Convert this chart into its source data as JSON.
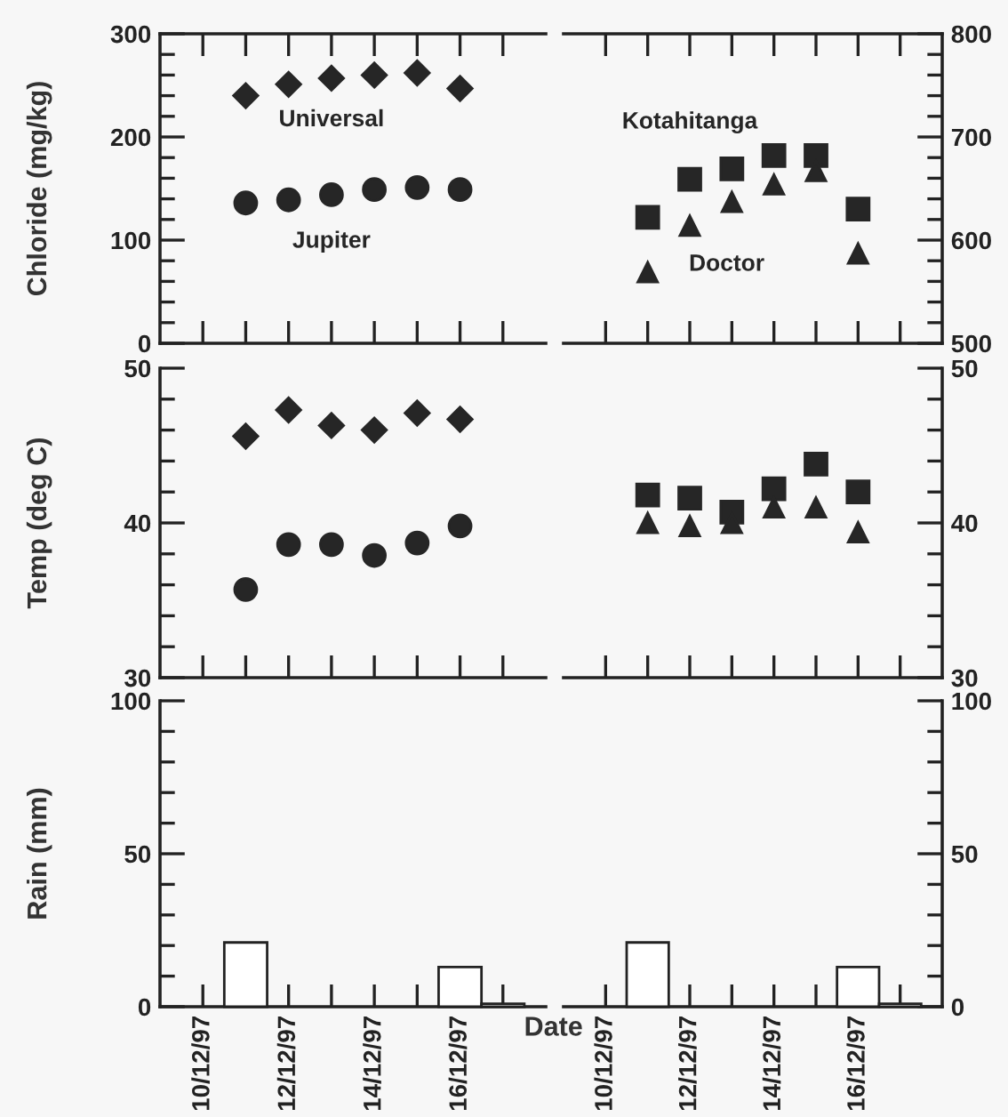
{
  "chart_data": [
    {
      "type": "scatter",
      "ylabel": "Chloride (mg/kg)",
      "xlim": [
        "1997-12-09",
        "1997-12-18"
      ],
      "xticks": [
        {
          "value": "1997-12-10",
          "label": null
        },
        {
          "value": "1997-12-11",
          "label": null
        },
        {
          "value": "1997-12-12",
          "label": null
        },
        {
          "value": "1997-12-13",
          "label": null
        },
        {
          "value": "1997-12-14",
          "label": null
        },
        {
          "value": "1997-12-15",
          "label": null
        },
        {
          "value": "1997-12-16",
          "label": null
        },
        {
          "value": "1997-12-17",
          "label": null
        }
      ],
      "ylim": [
        0,
        300
      ],
      "yticks": [
        0,
        {
          "value": 20,
          "label": null
        },
        {
          "value": 40,
          "label": null
        },
        {
          "value": 60,
          "label": null
        },
        {
          "value": 80,
          "label": null
        },
        100,
        {
          "value": 120,
          "label": null
        },
        {
          "value": 140,
          "label": null
        },
        {
          "value": 160,
          "label": null
        },
        {
          "value": 180,
          "label": null
        },
        200,
        {
          "value": 220,
          "label": null
        },
        {
          "value": 240,
          "label": null
        },
        {
          "value": 260,
          "label": null
        },
        {
          "value": 280,
          "label": null
        },
        300
      ],
      "tick_labels": "y",
      "grid": false,
      "legend": false,
      "series": [
        {
          "name": "Universal",
          "color": "#262626",
          "marker": "diamond",
          "x": [
            "1997-12-11",
            "1997-12-12",
            "1997-12-13",
            "1997-12-14",
            "1997-12-15",
            "1997-12-16"
          ],
          "values": [
            240,
            251,
            257,
            260,
            262,
            247
          ]
        },
        {
          "name": "Jupiter",
          "color": "#262626",
          "marker": "circle",
          "x": [
            "1997-12-11",
            "1997-12-12",
            "1997-12-13",
            "1997-12-14",
            "1997-12-15",
            "1997-12-16"
          ],
          "values": [
            136,
            139,
            144,
            149,
            151,
            149
          ]
        }
      ]
    },
    {
      "type": "scatter",
      "xlim": [
        "1997-12-09",
        "1997-12-18"
      ],
      "xticks": [
        {
          "value": "1997-12-10",
          "label": null
        },
        {
          "value": "1997-12-11",
          "label": null
        },
        {
          "value": "1997-12-12",
          "label": null
        },
        {
          "value": "1997-12-13",
          "label": null
        },
        {
          "value": "1997-12-14",
          "label": null
        },
        {
          "value": "1997-12-15",
          "label": null
        },
        {
          "value": "1997-12-16",
          "label": null
        },
        {
          "value": "1997-12-17",
          "label": null
        }
      ],
      "ylim": [
        500,
        800
      ],
      "yticks": [
        500,
        {
          "value": 520,
          "label": null
        },
        {
          "value": 540,
          "label": null
        },
        {
          "value": 560,
          "label": null
        },
        {
          "value": 580,
          "label": null
        },
        600,
        {
          "value": 620,
          "label": null
        },
        {
          "value": 640,
          "label": null
        },
        {
          "value": 660,
          "label": null
        },
        {
          "value": 680,
          "label": null
        },
        700,
        {
          "value": 720,
          "label": null
        },
        {
          "value": 740,
          "label": null
        },
        {
          "value": 760,
          "label": null
        },
        {
          "value": 780,
          "label": null
        },
        800
      ],
      "tick_labels": "y",
      "grid": false,
      "legend": false,
      "series": [
        {
          "name": "Kotahitanga",
          "color": "#262626",
          "marker": "square",
          "x": [
            "1997-12-11",
            "1997-12-12",
            "1997-12-13",
            "1997-12-14",
            "1997-12-15",
            "1997-12-16"
          ],
          "values": [
            622,
            659,
            669,
            682,
            682,
            630
          ]
        },
        {
          "name": "Doctor",
          "color": "#262626",
          "marker": "triangle",
          "x": [
            "1997-12-11",
            "1997-12-12",
            "1997-12-13",
            "1997-12-14",
            "1997-12-15",
            "1997-12-16"
          ],
          "values": [
            569,
            614,
            637,
            654,
            667,
            587
          ]
        }
      ]
    },
    {
      "type": "scatter",
      "ylabel": "Temp (deg C)",
      "xlim": [
        "1997-12-09",
        "1997-12-18"
      ],
      "xticks": [
        {
          "value": "1997-12-10",
          "label": null
        },
        {
          "value": "1997-12-11",
          "label": null
        },
        {
          "value": "1997-12-12",
          "label": null
        },
        {
          "value": "1997-12-13",
          "label": null
        },
        {
          "value": "1997-12-14",
          "label": null
        },
        {
          "value": "1997-12-15",
          "label": null
        },
        {
          "value": "1997-12-16",
          "label": null
        },
        {
          "value": "1997-12-17",
          "label": null
        }
      ],
      "ylim": [
        30,
        50
      ],
      "yticks": [
        30,
        {
          "value": 32,
          "label": null
        },
        {
          "value": 34,
          "label": null
        },
        {
          "value": 36,
          "label": null
        },
        {
          "value": 38,
          "label": null
        },
        40,
        {
          "value": 42,
          "label": null
        },
        {
          "value": 44,
          "label": null
        },
        {
          "value": 46,
          "label": null
        },
        {
          "value": 48,
          "label": null
        },
        50
      ],
      "tick_labels": "y",
      "grid": false,
      "legend": false,
      "series": [
        {
          "color": "#262626",
          "marker": "diamond",
          "x": [
            "1997-12-11",
            "1997-12-12",
            "1997-12-13",
            "1997-12-14",
            "1997-12-15",
            "1997-12-16"
          ],
          "values": [
            45.6,
            47.3,
            46.3,
            46.0,
            47.1,
            46.7
          ]
        },
        {
          "color": "#262626",
          "marker": "circle",
          "x": [
            "1997-12-11",
            "1997-12-12",
            "1997-12-13",
            "1997-12-14",
            "1997-12-15",
            "1997-12-16"
          ],
          "values": [
            35.7,
            38.6,
            38.6,
            37.9,
            38.7,
            39.8
          ]
        }
      ]
    },
    {
      "type": "scatter",
      "xlim": [
        "1997-12-09",
        "1997-12-18"
      ],
      "xticks": [
        {
          "value": "1997-12-10",
          "label": null
        },
        {
          "value": "1997-12-11",
          "label": null
        },
        {
          "value": "1997-12-12",
          "label": null
        },
        {
          "value": "1997-12-13",
          "label": null
        },
        {
          "value": "1997-12-14",
          "label": null
        },
        {
          "value": "1997-12-15",
          "label": null
        },
        {
          "value": "1997-12-16",
          "label": null
        },
        {
          "value": "1997-12-17",
          "label": null
        }
      ],
      "ylim": [
        30,
        50
      ],
      "yticks": [
        30,
        {
          "value": 32,
          "label": null
        },
        {
          "value": 34,
          "label": null
        },
        {
          "value": 36,
          "label": null
        },
        {
          "value": 38,
          "label": null
        },
        40,
        {
          "value": 42,
          "label": null
        },
        {
          "value": 44,
          "label": null
        },
        {
          "value": 46,
          "label": null
        },
        {
          "value": 48,
          "label": null
        },
        50
      ],
      "tick_labels": "y",
      "grid": false,
      "legend": false,
      "series": [
        {
          "color": "#262626",
          "marker": "square",
          "x": [
            "1997-12-11",
            "1997-12-12",
            "1997-12-13",
            "1997-12-14",
            "1997-12-15",
            "1997-12-16"
          ],
          "values": [
            41.8,
            41.6,
            40.7,
            42.2,
            43.8,
            42.0
          ]
        },
        {
          "color": "#262626",
          "marker": "triangle",
          "x": [
            "1997-12-11",
            "1997-12-12",
            "1997-12-13",
            "1997-12-14",
            "1997-12-15",
            "1997-12-16"
          ],
          "values": [
            40.0,
            39.8,
            40.0,
            41.0,
            41.0,
            39.4
          ]
        }
      ]
    },
    {
      "type": "bar",
      "ylabel": "Rain (mm)",
      "xlabel": "Date",
      "xlim": [
        "1997-12-09",
        "1997-12-18"
      ],
      "xticks": [
        {
          "value": "1997-12-10",
          "label": "10/12/97"
        },
        {
          "value": "1997-12-11",
          "label": null
        },
        {
          "value": "1997-12-12",
          "label": "12/12/97"
        },
        {
          "value": "1997-12-13",
          "label": null
        },
        {
          "value": "1997-12-14",
          "label": "14/12/97"
        },
        {
          "value": "1997-12-15",
          "label": null
        },
        {
          "value": "1997-12-16",
          "label": "16/12/97"
        },
        {
          "value": "1997-12-17",
          "label": null
        }
      ],
      "ylim": [
        0,
        100
      ],
      "yticks": [
        0,
        {
          "value": 10,
          "label": null
        },
        {
          "value": 20,
          "label": null
        },
        {
          "value": 30,
          "label": null
        },
        {
          "value": 40,
          "label": null
        },
        50,
        {
          "value": 60,
          "label": null
        },
        {
          "value": 70,
          "label": null
        },
        {
          "value": 80,
          "label": null
        },
        {
          "value": 90,
          "label": null
        },
        100
      ],
      "grid": false,
      "legend": false,
      "series": [
        {
          "color": "#ffffff",
          "x": [
            "1997-12-11",
            "1997-12-16",
            "1997-12-17"
          ],
          "values": [
            21,
            13,
            1
          ]
        }
      ]
    },
    {
      "type": "bar",
      "xlim": [
        "1997-12-09",
        "1997-12-18"
      ],
      "xticks": [
        {
          "value": "1997-12-10",
          "label": "10/12/97"
        },
        {
          "value": "1997-12-11",
          "label": null
        },
        {
          "value": "1997-12-12",
          "label": "12/12/97"
        },
        {
          "value": "1997-12-13",
          "label": null
        },
        {
          "value": "1997-12-14",
          "label": "14/12/97"
        },
        {
          "value": "1997-12-15",
          "label": null
        },
        {
          "value": "1997-12-16",
          "label": "16/12/97"
        },
        {
          "value": "1997-12-17",
          "label": null
        }
      ],
      "ylim": [
        0,
        100
      ],
      "yticks": [
        0,
        {
          "value": 10,
          "label": null
        },
        {
          "value": 20,
          "label": null
        },
        {
          "value": 30,
          "label": null
        },
        {
          "value": 40,
          "label": null
        },
        50,
        {
          "value": 60,
          "label": null
        },
        {
          "value": 70,
          "label": null
        },
        {
          "value": 80,
          "label": null
        },
        {
          "value": 90,
          "label": null
        },
        100
      ],
      "grid": false,
      "legend": false,
      "series": [
        {
          "color": "#ffffff",
          "x": [
            "1997-12-11",
            "1997-12-16",
            "1997-12-17"
          ],
          "values": [
            21,
            13,
            1
          ]
        }
      ]
    }
  ]
}
